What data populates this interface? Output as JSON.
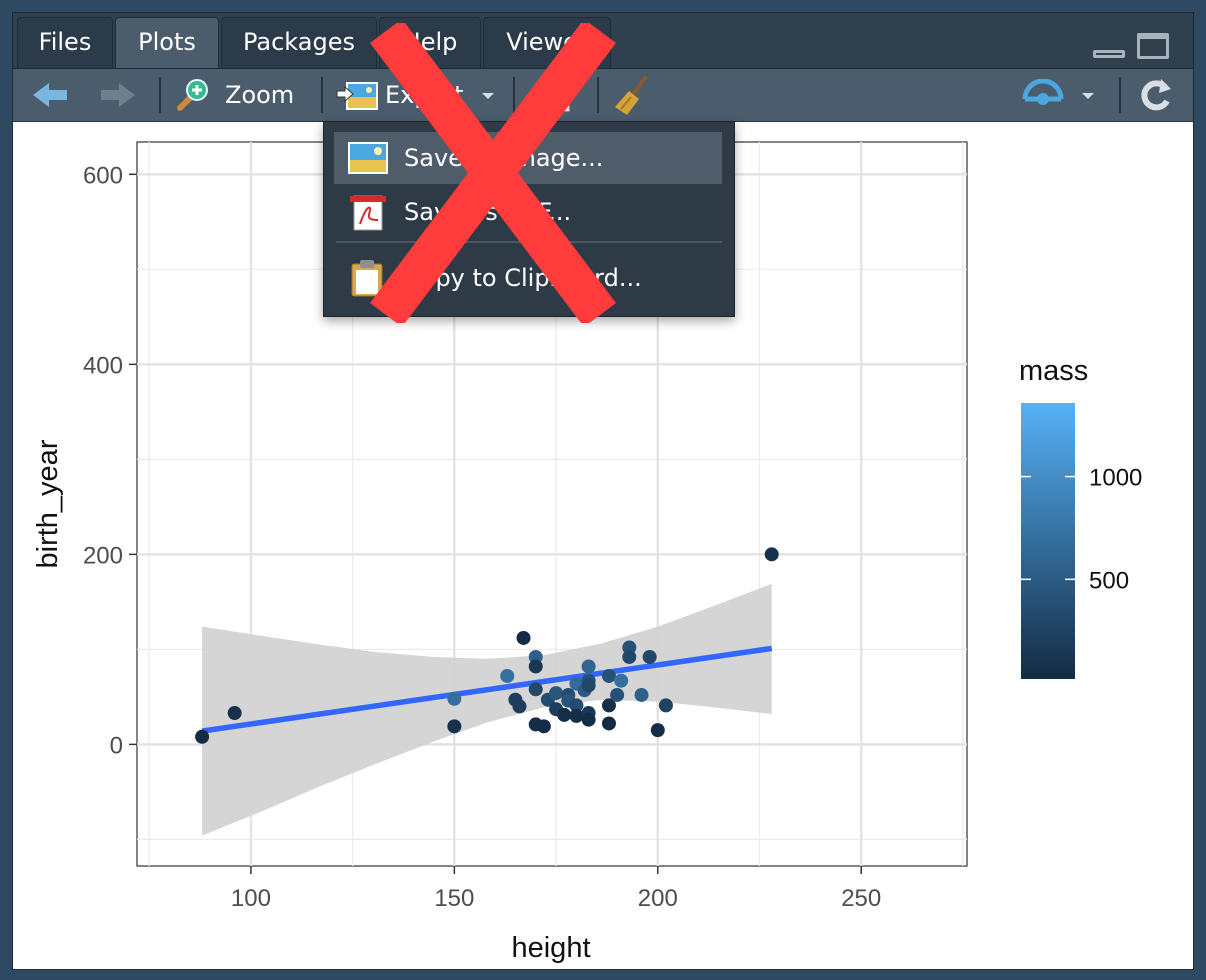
{
  "tabs": [
    {
      "label": "Files",
      "active": false
    },
    {
      "label": "Plots",
      "active": true
    },
    {
      "label": "Packages",
      "active": false
    },
    {
      "label": "Help",
      "active": false
    },
    {
      "label": "Viewer",
      "active": false
    }
  ],
  "toolbar": {
    "back_icon": "arrow-left-icon",
    "forward_icon": "arrow-right-icon",
    "zoom_label": "Zoom",
    "zoom_icon": "magnifier-plus-icon",
    "export_label": "Export",
    "export_icon": "picture-export-icon",
    "remove_icon": "remove-plot-icon",
    "clear_icon": "broom-icon",
    "publish_icon": "publish-icon",
    "refresh_icon": "refresh-icon"
  },
  "export_menu": {
    "items": [
      {
        "label": "Save as Image...",
        "icon": "image-file-icon",
        "highlighted": true
      },
      {
        "label": "Save as PDF...",
        "icon": "pdf-file-icon",
        "highlighted": false
      },
      {
        "label": "Copy to Clipboard...",
        "icon": "clipboard-icon",
        "highlighted": false
      }
    ]
  },
  "overlay": {
    "mark": "red-x-icon",
    "color": "#ff3b3b"
  },
  "colors": {
    "accent": "#3366ff",
    "band": "#d3d3d3",
    "legend_low": "#132b43",
    "legend_high": "#56b1f7"
  },
  "chart_data": {
    "type": "scatter",
    "xlabel": "height",
    "ylabel": "birth_year",
    "xlim": [
      72,
      276
    ],
    "ylim": [
      -128,
      634
    ],
    "x_ticks": [
      100,
      150,
      200,
      250
    ],
    "y_ticks": [
      0,
      200,
      400,
      600
    ],
    "grid": true,
    "legend": {
      "title": "mass",
      "ticks": [
        500,
        1000
      ],
      "range": [
        15,
        1358
      ],
      "placement": "right"
    },
    "points": [
      {
        "x": 88,
        "y": 8,
        "mass": 32
      },
      {
        "x": 96,
        "y": 33,
        "mass": 80
      },
      {
        "x": 150,
        "y": 48,
        "mass": 700
      },
      {
        "x": 150,
        "y": 19,
        "mass": 80
      },
      {
        "x": 163,
        "y": 72,
        "mass": 700
      },
      {
        "x": 165,
        "y": 47,
        "mass": 200
      },
      {
        "x": 166,
        "y": 40,
        "mass": 200
      },
      {
        "x": 167,
        "y": 112,
        "mass": 20
      },
      {
        "x": 170,
        "y": 92,
        "mass": 550
      },
      {
        "x": 170,
        "y": 82,
        "mass": 150
      },
      {
        "x": 170,
        "y": 58,
        "mass": 300
      },
      {
        "x": 170,
        "y": 21,
        "mass": 30
      },
      {
        "x": 172,
        "y": 19,
        "mass": 40
      },
      {
        "x": 173,
        "y": 47,
        "mass": 350
      },
      {
        "x": 175,
        "y": 54,
        "mass": 450
      },
      {
        "x": 175,
        "y": 37,
        "mass": 200
      },
      {
        "x": 177,
        "y": 31,
        "mass": 50
      },
      {
        "x": 178,
        "y": 52,
        "mass": 350
      },
      {
        "x": 178,
        "y": 46,
        "mass": 450
      },
      {
        "x": 180,
        "y": 64,
        "mass": 650
      },
      {
        "x": 180,
        "y": 41,
        "mass": 350
      },
      {
        "x": 180,
        "y": 30,
        "mass": 50
      },
      {
        "x": 182,
        "y": 57,
        "mass": 500
      },
      {
        "x": 183,
        "y": 82,
        "mass": 600
      },
      {
        "x": 183,
        "y": 67,
        "mass": 400
      },
      {
        "x": 183,
        "y": 62,
        "mass": 300
      },
      {
        "x": 183,
        "y": 33,
        "mass": 150
      },
      {
        "x": 183,
        "y": 26,
        "mass": 40
      },
      {
        "x": 188,
        "y": 72,
        "mass": 400
      },
      {
        "x": 188,
        "y": 41,
        "mass": 60
      },
      {
        "x": 188,
        "y": 22,
        "mass": 20
      },
      {
        "x": 190,
        "y": 52,
        "mass": 400
      },
      {
        "x": 191,
        "y": 67,
        "mass": 700
      },
      {
        "x": 193,
        "y": 102,
        "mass": 400
      },
      {
        "x": 193,
        "y": 92,
        "mass": 300
      },
      {
        "x": 196,
        "y": 52,
        "mass": 550
      },
      {
        "x": 198,
        "y": 92,
        "mass": 300
      },
      {
        "x": 200,
        "y": 15,
        "mass": 30
      },
      {
        "x": 202,
        "y": 41,
        "mass": 250
      },
      {
        "x": 228,
        "y": 200,
        "mass": 80
      }
    ],
    "fit_line": {
      "x": [
        88,
        228
      ],
      "y": [
        14,
        101
      ]
    },
    "confidence_band": {
      "x": [
        88,
        103,
        117,
        131,
        145,
        158,
        172,
        186,
        200,
        214,
        228
      ],
      "upper": [
        124,
        114,
        105,
        97,
        92,
        90,
        94,
        106,
        124,
        146,
        169
      ],
      "lower": [
        -96,
        -70,
        -44,
        -20,
        3,
        23,
        39,
        47,
        45,
        39,
        32
      ]
    }
  }
}
